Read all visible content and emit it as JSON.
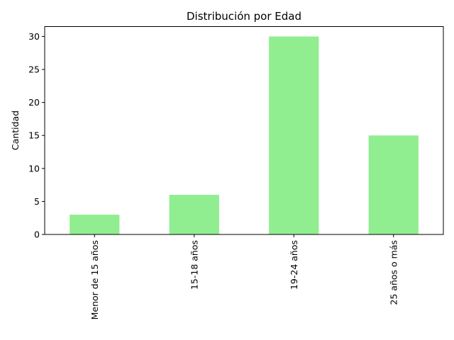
{
  "chart_data": {
    "type": "bar",
    "title": "Distribución por Edad",
    "xlabel": "",
    "ylabel": "Cantidad",
    "categories": [
      "Menor de 15 años",
      "15-18 años",
      "19-24 años",
      "25 años o más"
    ],
    "values": [
      3,
      6,
      30,
      15
    ],
    "ylim": [
      0,
      31.5
    ],
    "yticks": [
      0,
      5,
      10,
      15,
      20,
      25,
      30
    ],
    "bar_color": "#90ee90",
    "grid": false,
    "legend": "none"
  }
}
